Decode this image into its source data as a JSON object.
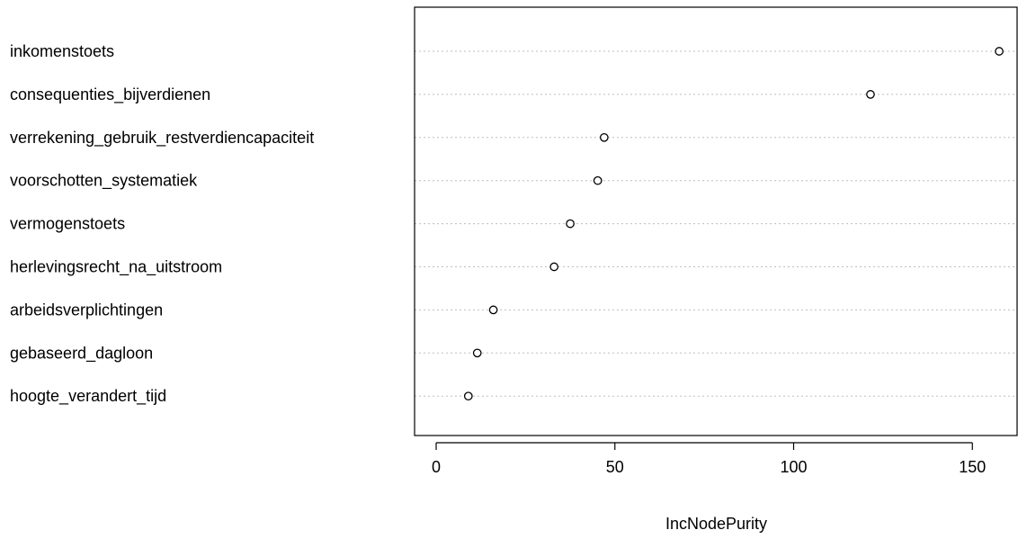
{
  "chart_data": {
    "type": "scatter",
    "subtype": "dotchart",
    "xlabel": "IncNodePurity",
    "ylabel": "",
    "xlim": [
      0,
      160
    ],
    "x_ticks": [
      0,
      50,
      100,
      150
    ],
    "x_tick_labels": [
      "0",
      "50",
      "100",
      "150"
    ],
    "grid": "dotted horizontal guide lines",
    "marker": "open-circle",
    "categories": [
      "inkomenstoets",
      "consequenties_bijverdienen",
      "verrekening_gebruik_restverdiencapaciteit",
      "voorschotten_systematiek",
      "vermogenstoets",
      "herlevingsrecht_na_uitstroom",
      "arbeidsverplichtingen",
      "gebaseerd_dagloon",
      "hoogte_verandert_tijd"
    ],
    "values": [
      157.5,
      121.5,
      47.0,
      45.2,
      37.5,
      33.0,
      16.0,
      11.5,
      9.0
    ]
  }
}
